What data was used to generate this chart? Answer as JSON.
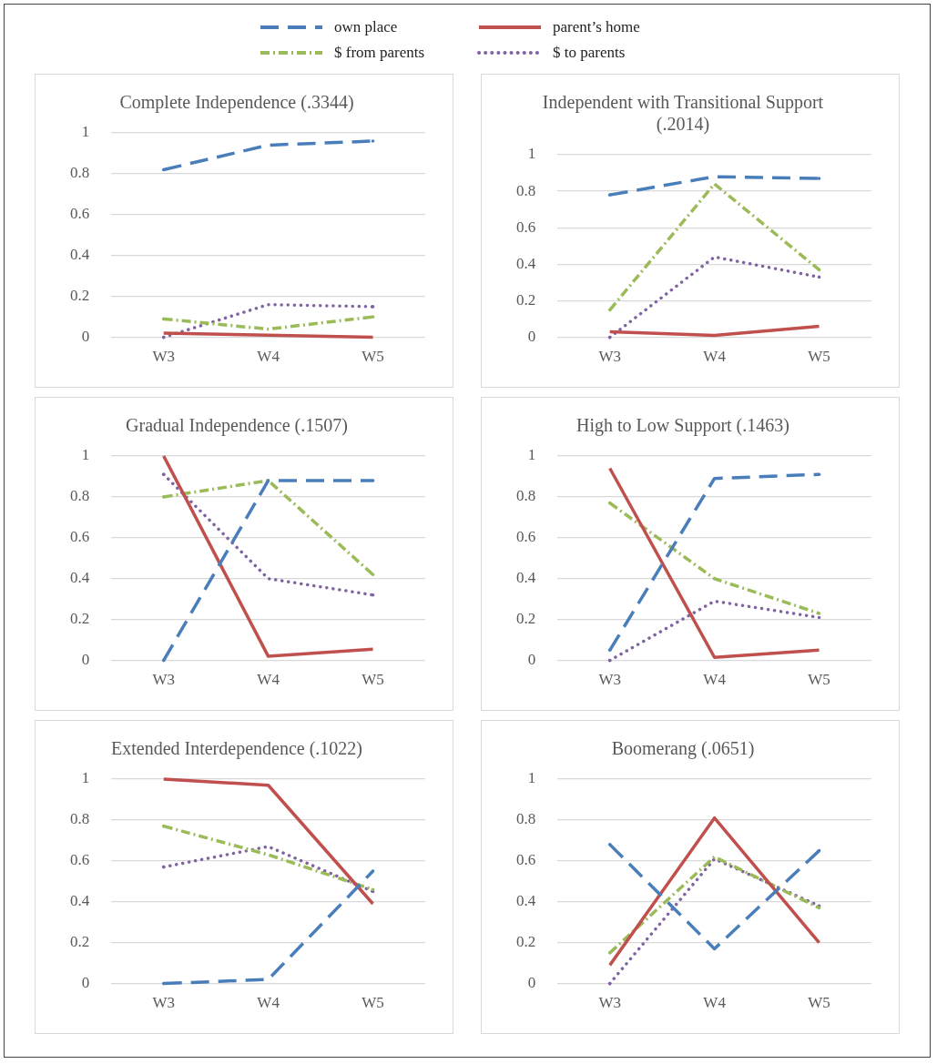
{
  "chart_data": [
    {
      "type": "line",
      "title": "Complete Independence (.3344)",
      "categories": [
        "W3",
        "W4",
        "W5"
      ],
      "ylim": [
        0,
        1
      ],
      "yticks": [
        0,
        0.2,
        0.4,
        0.6,
        0.8,
        1
      ],
      "grid": "y",
      "legend": "top",
      "series": [
        {
          "name": "own place",
          "color": "#4a7ebb",
          "line_style": "dashed",
          "values": [
            0.82,
            0.94,
            0.96
          ]
        },
        {
          "name": "parent’s home",
          "color": "#c0504d",
          "line_style": "solid",
          "values": [
            0.02,
            0.01,
            0
          ]
        },
        {
          "name": "$ from parents",
          "color": "#9bbb59",
          "line_style": "dashdot",
          "values": [
            0.09,
            0.04,
            0.1
          ]
        },
        {
          "name": "$ to parents",
          "color": "#8064a2",
          "line_style": "dotted",
          "values": [
            0,
            0.16,
            0.15
          ]
        }
      ]
    },
    {
      "type": "line",
      "title": "Independent with Transitional Support (.2014)",
      "categories": [
        "W3",
        "W4",
        "W5"
      ],
      "ylim": [
        0,
        1
      ],
      "yticks": [
        0,
        0.2,
        0.4,
        0.6,
        0.8,
        1
      ],
      "grid": "y",
      "series": [
        {
          "color": "#4a7ebb",
          "line_style": "dashed",
          "values": [
            0.78,
            0.88,
            0.87
          ]
        },
        {
          "color": "#c0504d",
          "line_style": "solid",
          "values": [
            0.03,
            0.01,
            0.06
          ]
        },
        {
          "color": "#9bbb59",
          "line_style": "dashdot",
          "values": [
            0.15,
            0.84,
            0.37
          ]
        },
        {
          "color": "#8064a2",
          "line_style": "dotted",
          "values": [
            0,
            0.44,
            0.33
          ]
        }
      ]
    },
    {
      "type": "line",
      "title": "Gradual Independence (.1507)",
      "categories": [
        "W3",
        "W4",
        "W5"
      ],
      "ylim": [
        0,
        1
      ],
      "yticks": [
        0,
        0.2,
        0.4,
        0.6,
        0.8,
        1
      ],
      "grid": "y",
      "series": [
        {
          "color": "#4a7ebb",
          "line_style": "dashed",
          "values": [
            0,
            0.88,
            0.88
          ]
        },
        {
          "color": "#c0504d",
          "line_style": "solid",
          "values": [
            1,
            0.02,
            0.055
          ]
        },
        {
          "color": "#9bbb59",
          "line_style": "dashdot",
          "values": [
            0.8,
            0.88,
            0.42
          ]
        },
        {
          "color": "#8064a2",
          "line_style": "dotted",
          "values": [
            0.91,
            0.4,
            0.32
          ]
        }
      ]
    },
    {
      "type": "line",
      "title": "High to Low Support (.1463)",
      "categories": [
        "W3",
        "W4",
        "W5"
      ],
      "ylim": [
        0,
        1
      ],
      "yticks": [
        0,
        0.2,
        0.4,
        0.6,
        0.8,
        1
      ],
      "grid": "y",
      "series": [
        {
          "color": "#4a7ebb",
          "line_style": "dashed",
          "values": [
            0.05,
            0.89,
            0.91
          ]
        },
        {
          "color": "#c0504d",
          "line_style": "solid",
          "values": [
            0.94,
            0.015,
            0.05
          ]
        },
        {
          "color": "#9bbb59",
          "line_style": "dashdot",
          "values": [
            0.77,
            0.4,
            0.23
          ]
        },
        {
          "color": "#8064a2",
          "line_style": "dotted",
          "values": [
            0,
            0.29,
            0.21
          ]
        }
      ]
    },
    {
      "type": "line",
      "title": "Extended Interdependence (.1022)",
      "categories": [
        "W3",
        "W4",
        "W5"
      ],
      "ylim": [
        0,
        1
      ],
      "yticks": [
        0,
        0.2,
        0.4,
        0.6,
        0.8,
        1
      ],
      "grid": "y",
      "series": [
        {
          "color": "#4a7ebb",
          "line_style": "dashed",
          "values": [
            0,
            0.02,
            0.55
          ]
        },
        {
          "color": "#c0504d",
          "line_style": "solid",
          "values": [
            1,
            0.97,
            0.39
          ]
        },
        {
          "color": "#9bbb59",
          "line_style": "dashdot",
          "values": [
            0.77,
            0.63,
            0.46
          ]
        },
        {
          "color": "#8064a2",
          "line_style": "dotted",
          "values": [
            0.57,
            0.67,
            0.45
          ]
        }
      ]
    },
    {
      "type": "line",
      "title": "Boomerang (.0651)",
      "categories": [
        "W3",
        "W4",
        "W5"
      ],
      "ylim": [
        0,
        1
      ],
      "yticks": [
        0,
        0.2,
        0.4,
        0.6,
        0.8,
        1
      ],
      "grid": "y",
      "series": [
        {
          "color": "#4a7ebb",
          "line_style": "dashed",
          "values": [
            0.68,
            0.17,
            0.65
          ]
        },
        {
          "color": "#c0504d",
          "line_style": "solid",
          "values": [
            0.09,
            0.81,
            0.2
          ]
        },
        {
          "color": "#9bbb59",
          "line_style": "dashdot",
          "values": [
            0.15,
            0.62,
            0.37
          ]
        },
        {
          "color": "#8064a2",
          "line_style": "dotted",
          "values": [
            0,
            0.61,
            0.38
          ]
        }
      ]
    }
  ]
}
